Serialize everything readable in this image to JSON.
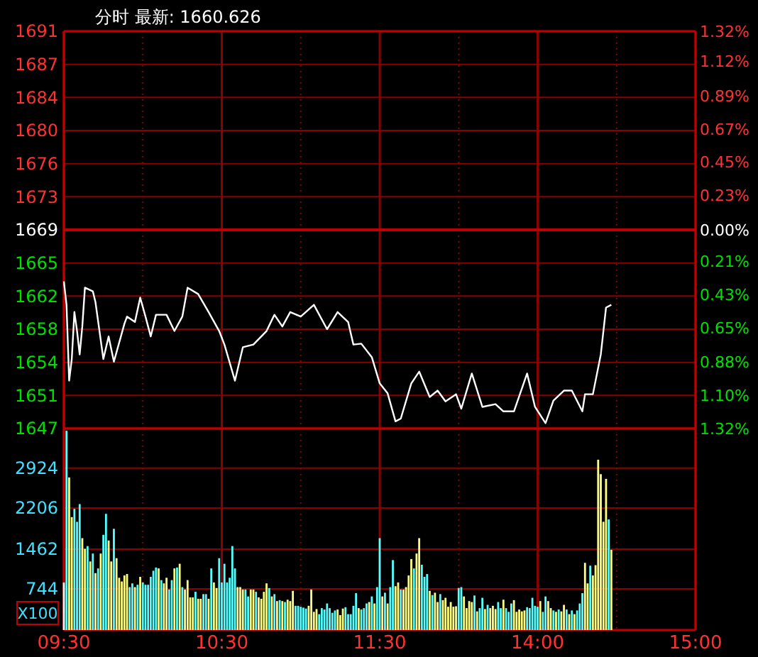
{
  "chart_data": [
    {
      "type": "line",
      "title": "分时 最新: 1660.626",
      "grid": true,
      "tick_labels": "y",
      "categories": [
        null,
        null,
        null,
        null,
        null,
        null,
        null,
        null,
        null,
        null,
        null,
        null,
        null,
        null,
        null,
        null,
        null,
        null,
        null,
        null,
        null,
        null,
        null,
        null,
        null,
        null,
        null,
        null,
        null,
        null,
        null,
        null,
        null,
        null,
        null,
        null,
        null,
        null,
        null,
        null,
        null,
        null,
        null,
        null,
        null,
        null,
        null,
        null,
        null,
        null,
        null,
        null,
        null,
        null,
        null,
        null,
        null,
        null,
        null,
        null,
        null,
        null,
        null,
        null,
        null,
        null,
        null,
        null,
        null,
        null,
        null,
        null,
        null,
        null,
        null,
        null,
        null,
        null,
        null,
        null,
        null,
        null,
        null,
        null,
        null,
        null,
        null,
        null,
        null,
        null,
        null,
        null,
        null,
        null,
        null,
        null,
        null,
        null,
        null,
        null,
        null,
        null,
        null,
        null,
        null,
        null,
        null,
        null,
        null,
        null,
        null,
        null,
        null,
        null,
        null,
        null,
        null,
        null,
        null,
        null,
        null,
        null,
        null,
        null,
        null,
        null,
        null,
        null,
        null,
        null,
        null,
        null,
        null,
        null,
        null,
        null,
        null,
        null,
        null,
        null,
        null,
        null,
        null,
        null,
        null,
        null,
        null,
        null,
        null,
        null,
        null,
        null,
        null,
        null,
        null,
        null,
        null,
        null,
        null,
        null,
        null,
        null,
        null,
        null,
        null,
        null,
        null,
        null,
        null,
        null,
        null,
        null,
        null,
        null,
        null,
        null,
        null,
        null,
        null,
        null,
        null,
        null,
        null,
        null,
        null,
        null,
        null,
        null,
        null,
        null,
        null,
        null,
        null,
        null,
        null,
        null,
        null,
        null,
        null,
        null,
        null,
        null,
        null,
        null,
        null,
        null,
        null,
        null,
        null,
        null,
        null,
        null,
        null,
        null,
        null,
        null,
        null,
        null,
        null,
        null,
        null,
        null,
        null,
        null,
        null,
        null,
        null,
        null,
        null,
        null,
        null,
        null,
        null,
        null,
        null,
        null,
        null,
        null,
        null,
        null,
        null
      ],
      "ylim": [
        1647,
        1691
      ],
      "yticks": [
        {
          "value": 1647,
          "label": "1647"
        },
        {
          "value": 1650.67,
          "label": "1651"
        },
        {
          "value": 1654.33,
          "label": "1654"
        },
        {
          "value": 1658,
          "label": "1658"
        },
        {
          "value": 1661.67,
          "label": "1662"
        },
        {
          "value": 1665.33,
          "label": "1665"
        },
        {
          "value": 1669,
          "label": "1669"
        },
        {
          "value": 1672.67,
          "label": "1673"
        },
        {
          "value": 1676.33,
          "label": "1676"
        },
        {
          "value": 1680,
          "label": "1680"
        },
        {
          "value": 1683.67,
          "label": "1684"
        },
        {
          "value": 1687.33,
          "label": "1687"
        },
        {
          "value": 1691,
          "label": "1691"
        }
      ],
      "y2lim": [
        -1.32,
        1.32
      ],
      "y2ticks": [
        {
          "value": -1.32,
          "label": "1.32%"
        },
        {
          "value": -1.1,
          "label": "1.10%"
        },
        {
          "value": -0.88,
          "label": "0.88%"
        },
        {
          "value": -0.65,
          "label": "0.65%"
        },
        {
          "value": -0.43,
          "label": "0.43%"
        },
        {
          "value": -0.21,
          "label": "0.21%"
        },
        {
          "value": 0,
          "label": "0.00%"
        },
        {
          "value": 0.23,
          "label": "0.23%"
        },
        {
          "value": 0.45,
          "label": "0.45%"
        },
        {
          "value": 0.67,
          "label": "0.67%"
        },
        {
          "value": 0.89,
          "label": "0.89%"
        },
        {
          "value": 1.12,
          "label": "1.12%"
        },
        {
          "value": 1.32,
          "label": "1.32%"
        }
      ],
      "ref_lines": [
        {
          "axis": "y",
          "value": 1669,
          "color": "#c00000"
        }
      ],
      "series": [
        {
          "color": "#ffffff",
          "values": [
            1663.3,
            1660.7,
            1652.3,
            1654.7,
            1659.9,
            1657.8,
            1655.2,
            1658.3,
            1662.6,
            null,
            null,
            1662.2,
            1661.0,
            null,
            null,
            1654.7,
            null,
            1657.2,
            null,
            1654.4,
            null,
            null,
            null,
            1658.6,
            1659.4,
            null,
            null,
            1658.8,
            null,
            1661.5,
            null,
            1659.4,
            null,
            1657.2,
            null,
            1659.6,
            null,
            null,
            null,
            1659.6,
            null,
            null,
            1657.8,
            null,
            null,
            1659.4,
            null,
            1662.6,
            null,
            null,
            null,
            1661.9,
            null,
            null,
            null,
            1659.9,
            null,
            null,
            null,
            1657.8,
            null,
            1656.3,
            null,
            null,
            null,
            1652.3,
            null,
            null,
            1656.0,
            null,
            null,
            null,
            1656.3,
            null,
            null,
            null,
            null,
            1657.8,
            null,
            null,
            1659.6,
            null,
            null,
            1658.3,
            null,
            null,
            1659.9,
            null,
            null,
            null,
            1659.4,
            null,
            null,
            null,
            null,
            1660.7,
            null,
            null,
            null,
            null,
            1658.0,
            null,
            null,
            null,
            1659.9,
            null,
            null,
            null,
            1658.8,
            null,
            1656.3,
            null,
            null,
            1656.4,
            null,
            null,
            null,
            1654.9,
            null,
            null,
            1652.0,
            null,
            null,
            1650.9,
            null,
            null,
            1647.8,
            null,
            1648.1,
            null,
            null,
            null,
            1652.0,
            null,
            null,
            1653.3,
            null,
            null,
            null,
            1650.5,
            null,
            null,
            1651.2,
            null,
            null,
            1650.0,
            null,
            null,
            null,
            1650.8,
            null,
            1649.2,
            null,
            null,
            null,
            1653.1,
            null,
            null,
            null,
            1649.4,
            null,
            null,
            null,
            null,
            1649.7,
            null,
            null,
            1648.9,
            null,
            null,
            null,
            1648.9,
            null,
            null,
            null,
            null,
            1653.1,
            null,
            null,
            1649.4,
            null,
            null,
            null,
            1647.6,
            null,
            null,
            1650.1,
            null,
            null,
            null,
            1651.2,
            null,
            null,
            1651.2,
            null,
            null,
            null,
            1648.9,
            1650.8,
            null,
            null,
            1650.8,
            null,
            null,
            1655.2,
            null,
            1660.4,
            null,
            1660.7,
            null,
            null,
            null,
            null,
            null,
            null,
            null,
            null,
            null,
            null,
            null,
            null,
            null,
            null,
            null,
            null,
            null,
            null,
            null,
            null,
            null,
            null,
            null,
            null,
            null,
            null,
            null,
            null,
            null,
            null,
            null,
            null
          ]
        }
      ]
    },
    {
      "type": "bar",
      "ylabel": "X100",
      "grid": true,
      "categories": [
        "09:30",
        null,
        null,
        null,
        null,
        null,
        null,
        null,
        null,
        null,
        null,
        null,
        null,
        null,
        null,
        null,
        null,
        null,
        null,
        null,
        null,
        null,
        null,
        null,
        null,
        null,
        null,
        null,
        null,
        null,
        null,
        null,
        null,
        null,
        null,
        null,
        null,
        null,
        null,
        null,
        null,
        null,
        null,
        null,
        null,
        null,
        null,
        null,
        null,
        null,
        null,
        null,
        null,
        null,
        null,
        null,
        null,
        null,
        null,
        null,
        "10:30",
        null,
        null,
        null,
        null,
        null,
        null,
        null,
        null,
        null,
        null,
        null,
        null,
        null,
        null,
        null,
        null,
        null,
        null,
        null,
        null,
        null,
        null,
        null,
        null,
        null,
        null,
        null,
        null,
        null,
        null,
        null,
        null,
        null,
        null,
        null,
        null,
        null,
        null,
        null,
        null,
        null,
        null,
        null,
        null,
        null,
        null,
        null,
        null,
        null,
        null,
        null,
        null,
        null,
        null,
        null,
        null,
        null,
        null,
        null,
        "11:30",
        null,
        null,
        null,
        null,
        null,
        null,
        null,
        null,
        null,
        null,
        null,
        null,
        null,
        null,
        null,
        null,
        null,
        null,
        null,
        null,
        null,
        null,
        null,
        null,
        null,
        null,
        null,
        null,
        null,
        null,
        null,
        null,
        null,
        null,
        null,
        null,
        null,
        null,
        null,
        null,
        null,
        null,
        null,
        null,
        null,
        null,
        null,
        null,
        null,
        null,
        null,
        null,
        null,
        null,
        null,
        null,
        null,
        null,
        null,
        "14:00",
        null,
        null,
        null,
        null,
        null,
        null,
        null,
        null,
        null,
        null,
        null,
        null,
        null,
        null,
        null,
        null,
        null,
        null,
        null,
        null,
        null,
        null,
        null,
        null,
        null,
        null,
        null,
        null,
        null,
        null,
        null,
        null,
        null,
        null,
        null,
        null,
        null,
        null,
        null,
        null,
        null,
        null,
        null,
        null,
        null,
        null,
        null,
        null,
        null,
        null,
        null,
        null,
        null,
        null,
        null,
        null,
        null,
        null,
        null,
        "15:00"
      ],
      "ylim": [
        0,
        3640
      ],
      "yticks": [
        744,
        1462,
        2206,
        2924
      ],
      "values": [
        860,
        3600,
        2757,
        2040,
        2190,
        1955,
        2276,
        1660,
        1467,
        1517,
        1239,
        1382,
        1028,
        1113,
        1382,
        1720,
        2099,
        1618,
        1239,
        1829,
        1298,
        944,
        877,
        986,
        1012,
        776,
        843,
        776,
        818,
        961,
        860,
        818,
        818,
        961,
        1071,
        1130,
        1113,
        902,
        843,
        944,
        733,
        902,
        1113,
        1130,
        1197,
        776,
        733,
        902,
        590,
        590,
        691,
        565,
        565,
        649,
        649,
        565,
        1113,
        860,
        759,
        1298,
        860,
        1197,
        860,
        944,
        1517,
        1113,
        776,
        776,
        733,
        733,
        607,
        733,
        733,
        691,
        590,
        565,
        691,
        843,
        759,
        607,
        649,
        523,
        540,
        523,
        506,
        548,
        523,
        708,
        438,
        438,
        421,
        405,
        388,
        438,
        733,
        329,
        379,
        287,
        396,
        371,
        480,
        396,
        312,
        354,
        371,
        270,
        388,
        413,
        287,
        287,
        438,
        666,
        396,
        371,
        396,
        480,
        506,
        607,
        480,
        776,
        1660,
        607,
        674,
        480,
        776,
        1264,
        792,
        860,
        733,
        733,
        776,
        986,
        1281,
        1113,
        1382,
        1660,
        1180,
        961,
        1012,
        708,
        632,
        674,
        506,
        649,
        540,
        582,
        421,
        506,
        421,
        430,
        759,
        776,
        607,
        396,
        523,
        506,
        624,
        337,
        396,
        582,
        379,
        455,
        396,
        438,
        379,
        506,
        396,
        548,
        396,
        329,
        480,
        540,
        329,
        371,
        337,
        354,
        413,
        396,
        582,
        438,
        421,
        523,
        329,
        607,
        523,
        396,
        354,
        329,
        371,
        337,
        455,
        371,
        287,
        354,
        287,
        354,
        480,
        666,
        1214,
        843,
        1163,
        986,
        1172,
        3077,
        2816,
        1956,
        2731,
        1998,
        1450,
        null,
        null,
        null,
        null,
        null,
        null,
        null,
        null,
        null,
        null,
        null,
        null,
        null,
        null,
        null,
        null,
        null,
        null,
        null,
        null,
        null,
        null,
        null,
        null,
        null,
        null,
        null,
        null,
        null,
        null,
        null,
        null
      ],
      "colors": [
        "#ffffff",
        "#54ffff",
        "#ffff80",
        "#ffff80",
        "#54ffff",
        "#54ffff",
        "#54ffff",
        "#ffff80",
        "#ffff80",
        "#54ffff",
        "#ffff80",
        "#54ffff",
        "#ffff80",
        "#54ffff",
        "#ffff80",
        "#54ffff",
        "#54ffff",
        "#ffff80",
        "#ffff80",
        "#54ffff",
        "#ffff80",
        "#ffff80",
        "#ffff80",
        "#ffff80",
        "#ffff80",
        "#54ffff",
        "#54ffff",
        "#ffff80",
        "#54ffff",
        "#ffff80",
        "#54ffff",
        "#54ffff",
        "#54ffff",
        "#54ffff",
        "#54ffff",
        "#54ffff",
        "#ffff80",
        "#54ffff",
        "#ffff80",
        "#ffff80",
        "#54ffff",
        "#54ffff",
        "#ffff80",
        "#54ffff",
        "#ffff80",
        "#54ffff",
        "#ffff80",
        "#ffff80",
        "#ffff80",
        "#ffff80",
        "#54ffff",
        "#ffff80",
        "#ffff80",
        "#54ffff",
        "#54ffff",
        "#ffff80",
        "#54ffff",
        "#ffff80",
        "#ffff80",
        "#54ffff",
        "#54ffff",
        "#54ffff",
        "#54ffff",
        "#54ffff",
        "#54ffff",
        "#54ffff",
        "#ffff80",
        "#ffff80",
        "#ffff80",
        "#54ffff",
        "#54ffff",
        "#ffff80",
        "#ffff80",
        "#54ffff",
        "#ffff80",
        "#ffff80",
        "#ffff80",
        "#ffff80",
        "#54ffff",
        "#ffff80",
        "#54ffff",
        "#ffff80",
        "#54ffff",
        "#ffff80",
        "#54ffff",
        "#ffff80",
        "#ffff80",
        "#ffff80",
        "#54ffff",
        "#54ffff",
        "#54ffff",
        "#54ffff",
        "#54ffff",
        "#ffff80",
        "#ffff80",
        "#ffff80",
        "#ffff80",
        "#54ffff",
        "#54ffff",
        "#54ffff",
        "#54ffff",
        "#54ffff",
        "#54ffff",
        "#54ffff",
        "#ffff80",
        "#ffff80",
        "#ffff80",
        "#54ffff",
        "#54ffff",
        "#54ffff",
        "#54ffff",
        "#54ffff",
        "#ffff80",
        "#54ffff",
        "#54ffff",
        "#54ffff",
        "#ffff80",
        "#54ffff",
        "#ffff80",
        "#54ffff",
        "#54ffff",
        "#ffff80",
        "#54ffff",
        "#ffff80",
        "#54ffff",
        "#54ffff",
        "#ffff80",
        "#ffff80",
        "#54ffff",
        "#ffff80",
        "#ffff80",
        "#ffff80",
        "#ffff80",
        "#54ffff",
        "#ffff80",
        "#ffff80",
        "#54ffff",
        "#54ffff",
        "#54ffff",
        "#ffff80",
        "#54ffff",
        "#ffff80",
        "#ffff80",
        "#54ffff",
        "#ffff80",
        "#ffff80",
        "#ffff80",
        "#ffff80",
        "#ffff80",
        "#ffff80",
        "#54ffff",
        "#54ffff",
        "#ffff80",
        "#ffff80",
        "#ffff80",
        "#ffff80",
        "#54ffff",
        "#ffff80",
        "#54ffff",
        "#54ffff",
        "#ffff80",
        "#54ffff",
        "#ffff80",
        "#ffff80",
        "#ffff80",
        "#54ffff",
        "#54ffff",
        "#ffff80",
        "#54ffff",
        "#54ffff",
        "#54ffff",
        "#ffff80",
        "#ffff80",
        "#ffff80",
        "#ffff80",
        "#ffff80",
        "#54ffff",
        "#54ffff",
        "#54ffff",
        "#54ffff",
        "#54ffff",
        "#ffff80",
        "#54ffff",
        "#54ffff",
        "#ffff80",
        "#ffff80",
        "#54ffff",
        "#ffff80",
        "#54ffff",
        "#ffff80",
        "#ffff80",
        "#54ffff",
        "#ffff80",
        "#54ffff",
        "#ffff80",
        "#54ffff",
        "#54ffff",
        "#54ffff",
        "#ffff80",
        "#ffff80",
        "#54ffff",
        "#ffff80",
        "#ffff80",
        "#ffff80",
        "#ffff80",
        "#ffff80",
        "#ffff80",
        "#54ffff",
        "#ffff80",
        null,
        null,
        null,
        null,
        null,
        null,
        null,
        null,
        null,
        null,
        null,
        null,
        null,
        null,
        null,
        null,
        null,
        null,
        null,
        null,
        null,
        null,
        null,
        null,
        null,
        null,
        null,
        null,
        null,
        null,
        null,
        null
      ]
    }
  ]
}
